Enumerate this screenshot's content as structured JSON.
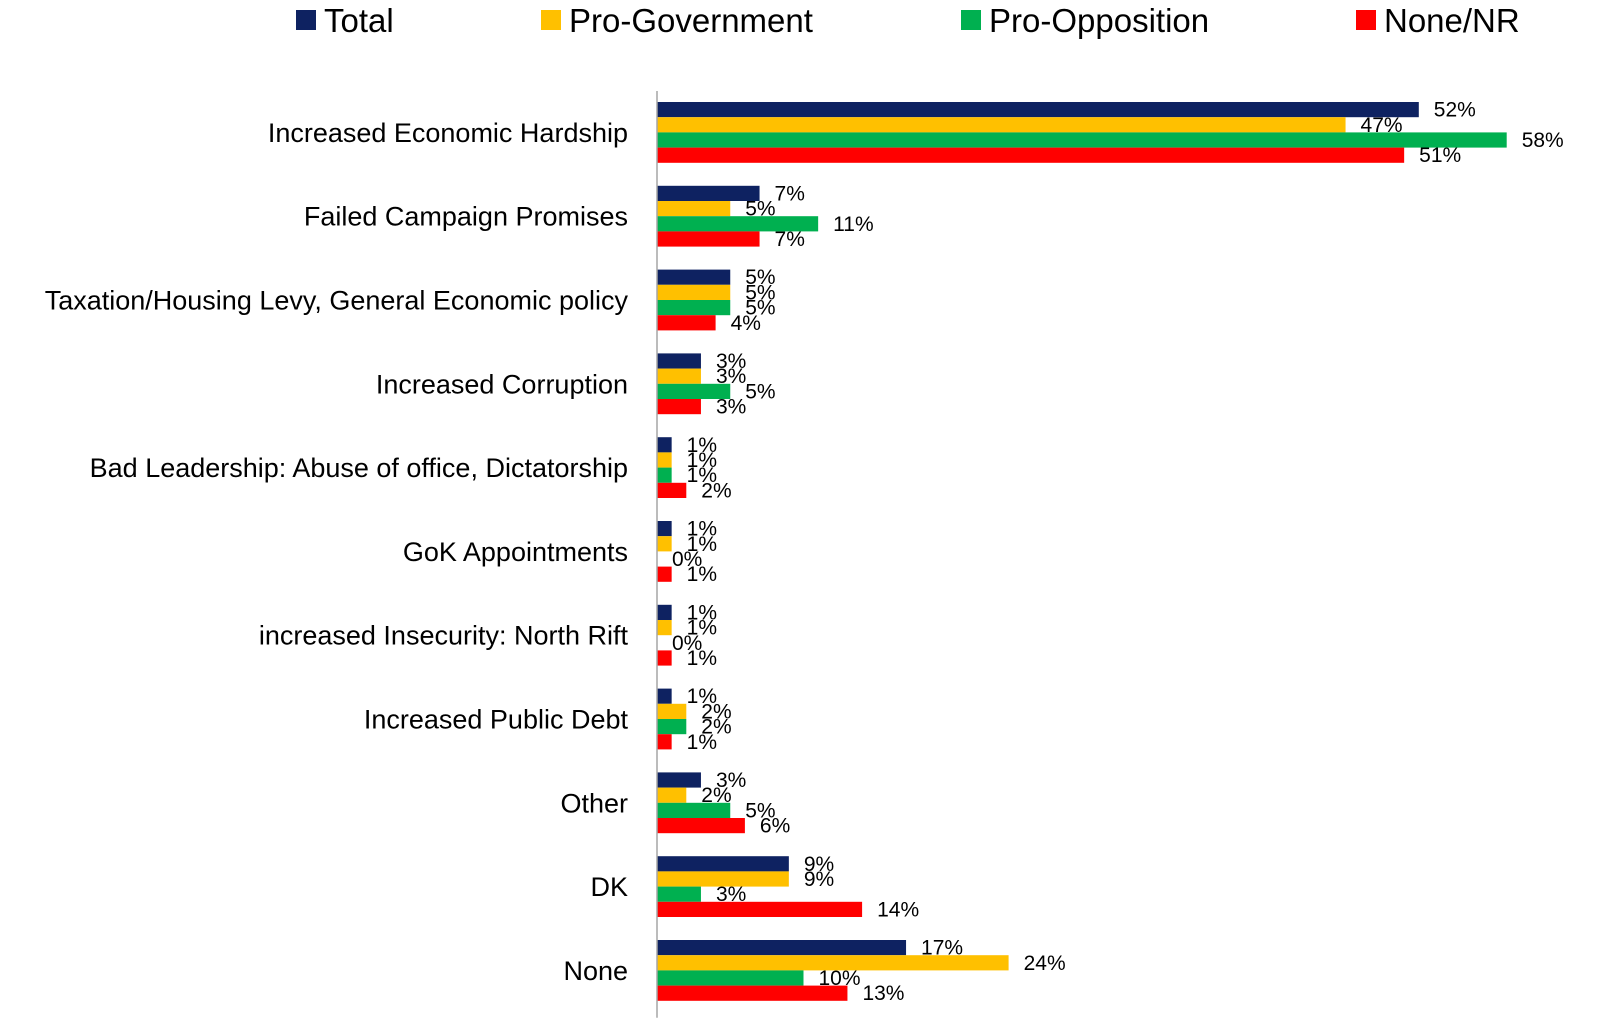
{
  "chart_data": {
    "type": "bar",
    "orientation": "horizontal",
    "value_suffix": "%",
    "xlim": [
      0,
      58
    ],
    "grid": false,
    "legend_position": "top",
    "categories": [
      "Increased Economic Hardship",
      "Failed Campaign Promises",
      "Taxation/Housing Levy, General Economic policy",
      "Increased Corruption",
      "Bad Leadership: Abuse of office, Dictatorship",
      "GoK Appointments",
      "increased Insecurity: North Rift",
      "Increased Public Debt",
      "Other",
      "DK",
      "None"
    ],
    "series": [
      {
        "name": "Total",
        "color": "#0e2261",
        "values": [
          52,
          7,
          5,
          3,
          1,
          1,
          1,
          1,
          3,
          9,
          17
        ]
      },
      {
        "name": "Pro-Government",
        "color": "#ffc000",
        "values": [
          47,
          5,
          5,
          3,
          1,
          1,
          1,
          2,
          2,
          9,
          24
        ]
      },
      {
        "name": "Pro-Opposition",
        "color": "#00b050",
        "values": [
          58,
          11,
          5,
          5,
          1,
          0,
          0,
          2,
          5,
          3,
          10
        ]
      },
      {
        "name": "None/NR",
        "color": "#ff0000",
        "values": [
          51,
          7,
          4,
          3,
          2,
          1,
          1,
          1,
          6,
          14,
          13
        ]
      }
    ]
  }
}
